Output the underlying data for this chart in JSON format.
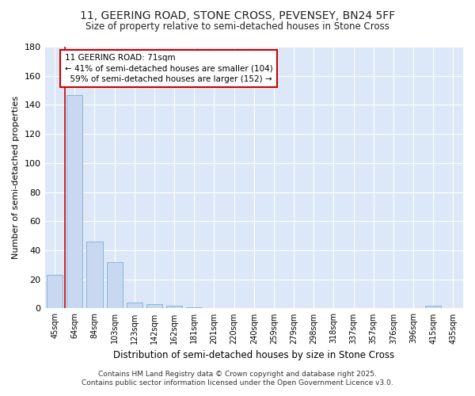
{
  "title": "11, GEERING ROAD, STONE CROSS, PEVENSEY, BN24 5FF",
  "subtitle": "Size of property relative to semi-detached houses in Stone Cross",
  "xlabel": "Distribution of semi-detached houses by size in Stone Cross",
  "ylabel": "Number of semi-detached properties",
  "categories": [
    "45sqm",
    "64sqm",
    "84sqm",
    "103sqm",
    "123sqm",
    "142sqm",
    "162sqm",
    "181sqm",
    "201sqm",
    "220sqm",
    "240sqm",
    "259sqm",
    "279sqm",
    "298sqm",
    "318sqm",
    "337sqm",
    "357sqm",
    "376sqm",
    "396sqm",
    "415sqm",
    "435sqm"
  ],
  "values": [
    23,
    147,
    46,
    32,
    4,
    3,
    2,
    1,
    0,
    0,
    0,
    0,
    0,
    0,
    0,
    0,
    0,
    0,
    0,
    2,
    0
  ],
  "bar_color": "#c8d8f0",
  "bar_edge_color": "#8ab4d8",
  "red_line_bar_index": 1,
  "ylim": [
    0,
    180
  ],
  "yticks": [
    0,
    20,
    40,
    60,
    80,
    100,
    120,
    140,
    160,
    180
  ],
  "annotation_line1": "11 GEERING ROAD: 71sqm",
  "annotation_line2": "← 41% of semi-detached houses are smaller (104)",
  "annotation_line3": "  59% of semi-detached houses are larger (152) →",
  "background_color": "#dce8f8",
  "figure_background": "#ffffff",
  "grid_color": "#ffffff",
  "footer_line1": "Contains HM Land Registry data © Crown copyright and database right 2025.",
  "footer_line2": "Contains public sector information licensed under the Open Government Licence v3.0."
}
